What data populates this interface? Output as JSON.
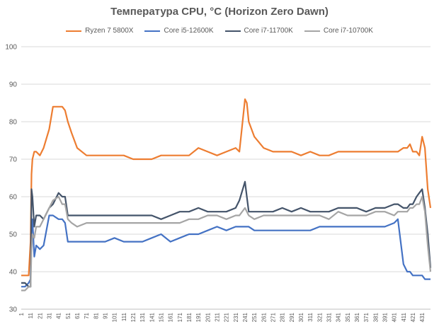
{
  "chart_data": {
    "type": "line",
    "title": "Температура CPU, °C (Horizon Zero Dawn)",
    "xlabel": "",
    "ylabel": "",
    "ylim": [
      30,
      100
    ],
    "yticks": [
      "30",
      "40",
      "50",
      "60",
      "70",
      "80",
      "90",
      "100"
    ],
    "xlim": [
      1,
      440
    ],
    "xticks": [
      "1",
      "11",
      "21",
      "31",
      "41",
      "51",
      "61",
      "71",
      "81",
      "91",
      "101",
      "111",
      "121",
      "131",
      "141",
      "151",
      "161",
      "171",
      "181",
      "191",
      "201",
      "211",
      "221",
      "231",
      "241",
      "251",
      "261",
      "271",
      "281",
      "291",
      "301",
      "311",
      "321",
      "331",
      "341",
      "351",
      "361",
      "371",
      "381",
      "391",
      "401",
      "411",
      "421",
      "431"
    ],
    "grid": true,
    "legend_position": "top",
    "x": [
      1,
      5,
      9,
      11,
      12,
      13,
      15,
      17,
      21,
      25,
      31,
      35,
      41,
      45,
      48,
      51,
      55,
      61,
      71,
      81,
      91,
      101,
      111,
      121,
      131,
      141,
      151,
      161,
      171,
      181,
      191,
      201,
      211,
      221,
      231,
      235,
      241,
      243,
      245,
      251,
      261,
      271,
      281,
      291,
      301,
      311,
      321,
      331,
      341,
      351,
      361,
      371,
      381,
      391,
      401,
      405,
      411,
      415,
      418,
      421,
      425,
      428,
      431,
      434,
      437,
      440
    ],
    "series": [
      {
        "name": "Ryzen 7 5800X",
        "color": "#ED7D31",
        "values": [
          39,
          39,
          39,
          48,
          66,
          70,
          72,
          72,
          71,
          73,
          78,
          84,
          84,
          84,
          83,
          80,
          77,
          73,
          71,
          71,
          71,
          71,
          71,
          70,
          70,
          70,
          71,
          71,
          71,
          71,
          73,
          72,
          71,
          72,
          73,
          72,
          86,
          85,
          80,
          76,
          73,
          72,
          72,
          72,
          71,
          72,
          71,
          71,
          72,
          72,
          72,
          72,
          72,
          72,
          72,
          72,
          73,
          73,
          74,
          72,
          72,
          71,
          76,
          73,
          62,
          57
        ]
      },
      {
        "name": "Core i5-12600K",
        "color": "#4472C4",
        "values": [
          36,
          36,
          37,
          38,
          52,
          54,
          44,
          47,
          46,
          47,
          55,
          55,
          54,
          54,
          53,
          48,
          48,
          48,
          48,
          48,
          48,
          49,
          48,
          48,
          48,
          49,
          50,
          48,
          49,
          50,
          50,
          51,
          52,
          51,
          52,
          52,
          52,
          52,
          52,
          51,
          51,
          51,
          51,
          51,
          51,
          51,
          52,
          52,
          52,
          52,
          52,
          52,
          52,
          52,
          53,
          54,
          42,
          40,
          40,
          39,
          39,
          39,
          39,
          38,
          38,
          38
        ]
      },
      {
        "name": "Core i7-11700K",
        "color": "#44546A",
        "values": [
          37,
          37,
          36,
          36,
          62,
          60,
          52,
          55,
          55,
          54,
          57,
          58,
          61,
          60,
          60,
          55,
          55,
          55,
          55,
          55,
          55,
          55,
          55,
          55,
          55,
          55,
          54,
          55,
          56,
          56,
          57,
          56,
          56,
          56,
          57,
          59,
          64,
          60,
          56,
          56,
          56,
          56,
          57,
          56,
          57,
          56,
          56,
          56,
          57,
          57,
          57,
          56,
          57,
          57,
          58,
          58,
          57,
          57,
          58,
          58,
          60,
          61,
          62,
          57,
          50,
          41
        ]
      },
      {
        "name": "Core i7-10700K",
        "color": "#A5A5A5",
        "values": [
          35,
          35,
          36,
          36,
          46,
          50,
          49,
          52,
          52,
          54,
          57,
          59,
          60,
          58,
          58,
          54,
          53,
          52,
          53,
          53,
          53,
          53,
          53,
          53,
          53,
          53,
          53,
          53,
          53,
          54,
          54,
          55,
          55,
          54,
          55,
          55,
          57,
          56,
          55,
          54,
          55,
          55,
          55,
          55,
          55,
          55,
          55,
          54,
          56,
          55,
          55,
          55,
          56,
          56,
          55,
          56,
          56,
          56,
          57,
          57,
          58,
          58,
          60,
          56,
          47,
          40
        ]
      }
    ]
  }
}
